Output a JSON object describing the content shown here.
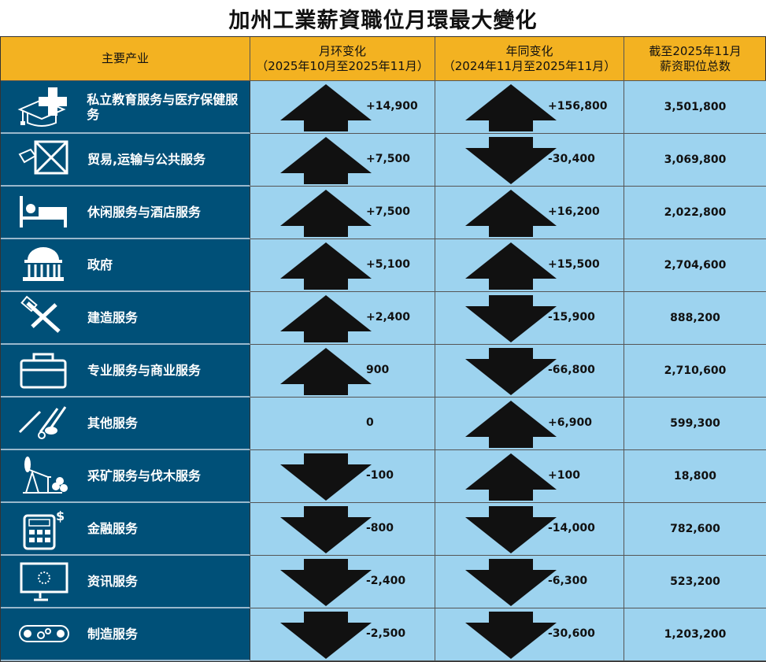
{
  "title": "加州工業薪資職位月環最大變化",
  "headers": {
    "industry": "主要产业",
    "mom_1": "月环变化",
    "mom_2": "（2025年10月至2025年11月）",
    "yoy_1": "年同变化",
    "yoy_2": "（2024年11月至2025年11月）",
    "total_1": "截至2025年11月",
    "total_2": "薪资职位总数"
  },
  "rows": [
    {
      "icon": "graduation-cap-medical-cross-icon",
      "name": "私立教育服务与医疗保健服务",
      "mom": "+14,900",
      "mom_dir": "up",
      "yoy": "+156,800",
      "yoy_dir": "up",
      "total": "3,501,800"
    },
    {
      "icon": "shipping-crate-icon",
      "name": "贸易,运输与公共服务",
      "mom": "+7,500",
      "mom_dir": "up",
      "yoy": "-30,400",
      "yoy_dir": "down",
      "total": "3,069,800"
    },
    {
      "icon": "bed-icon",
      "name": "休闲服务与酒店服务",
      "mom": "+7,500",
      "mom_dir": "up",
      "yoy": "+16,200",
      "yoy_dir": "up",
      "total": "2,022,800"
    },
    {
      "icon": "capitol-building-icon",
      "name": "政府",
      "mom": "+5,100",
      "mom_dir": "up",
      "yoy": "+15,500",
      "yoy_dir": "up",
      "total": "2,704,600"
    },
    {
      "icon": "hammer-wrench-icon",
      "name": "建造服务",
      "mom": "+2,400",
      "mom_dir": "up",
      "yoy": "-15,900",
      "yoy_dir": "down",
      "total": "888,200"
    },
    {
      "icon": "toolbox-icon",
      "name": "专业服务与商业服务",
      "mom": "900",
      "mom_dir": "up",
      "yoy": "-66,800",
      "yoy_dir": "down",
      "total": "2,710,600"
    },
    {
      "icon": "wrench-scissors-brush-icon",
      "name": "其他服务",
      "mom": "0",
      "mom_dir": "none",
      "yoy": "+6,900",
      "yoy_dir": "up",
      "total": "599,300"
    },
    {
      "icon": "oil-pump-logs-icon",
      "name": "采矿服务与伐木服务",
      "mom": "-100",
      "mom_dir": "down",
      "yoy": "+100",
      "yoy_dir": "up",
      "total": "18,800"
    },
    {
      "icon": "calculator-dollar-icon",
      "name": "金融服务",
      "mom": "-800",
      "mom_dir": "down",
      "yoy": "-14,000",
      "yoy_dir": "down",
      "total": "782,600"
    },
    {
      "icon": "monitor-icon",
      "name": "资讯服务",
      "mom": "-2,400",
      "mom_dir": "down",
      "yoy": "-6,300",
      "yoy_dir": "down",
      "total": "523,200"
    },
    {
      "icon": "conveyor-gears-icon",
      "name": "制造服务",
      "mom": "-2,500",
      "mom_dir": "down",
      "yoy": "-30,600",
      "yoy_dir": "down",
      "total": "1,203,200"
    }
  ]
}
